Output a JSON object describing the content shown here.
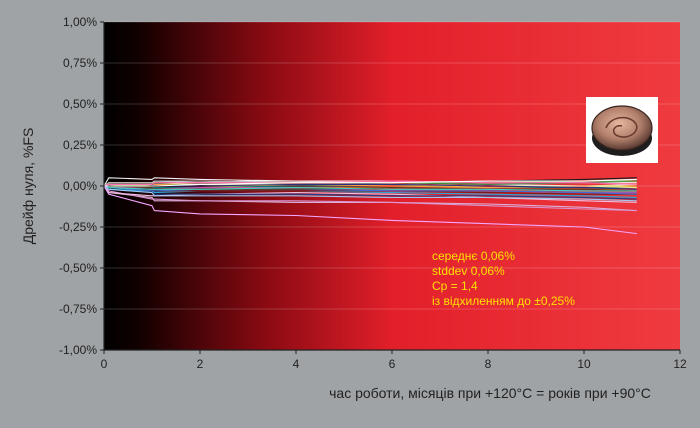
{
  "chart_data": {
    "type": "line",
    "ylabel": "Дрейф нуля, %FS",
    "xlabel": "час роботи, місяців при +120°C = років при +90°C",
    "xlim": [
      0,
      12
    ],
    "ylim": [
      -1.0,
      1.0
    ],
    "x_ticks": [
      {
        "value": 0,
        "label": "0"
      },
      {
        "value": 2,
        "label": "2"
      },
      {
        "value": 4,
        "label": "4"
      },
      {
        "value": 6,
        "label": "6"
      },
      {
        "value": 8,
        "label": "8"
      },
      {
        "value": 10,
        "label": "10"
      },
      {
        "value": 12,
        "label": "12"
      }
    ],
    "y_ticks": [
      {
        "value": 1.0,
        "label": "1,00%"
      },
      {
        "value": 0.75,
        "label": "0,75%"
      },
      {
        "value": 0.5,
        "label": "0,50%"
      },
      {
        "value": 0.25,
        "label": "0,25%"
      },
      {
        "value": 0.0,
        "label": "0,00%"
      },
      {
        "value": -0.25,
        "label": "-0,25%"
      },
      {
        "value": -0.5,
        "label": "-0,50%"
      },
      {
        "value": -0.75,
        "label": "-0,75%"
      },
      {
        "value": -1.0,
        "label": "-1,00%"
      }
    ],
    "grid": true,
    "annotations": [
      "середнє 0,06%",
      "stddev 0,06%",
      "Cp = 1,4",
      "із відхиленням до ±0,25%"
    ],
    "series": [
      {
        "color": "#e8eef2",
        "x": [
          0,
          0.1,
          1,
          1.05,
          2,
          3,
          4,
          6,
          8,
          10,
          11.1
        ],
        "y": [
          0.0,
          0.02,
          0.02,
          0.03,
          0.02,
          0.03,
          0.03,
          0.02,
          0.01,
          0.0,
          0.01
        ]
      },
      {
        "color": "#dcb0d8",
        "x": [
          0,
          0.1,
          1,
          1.05,
          2,
          4,
          6,
          8,
          10,
          11.1
        ],
        "y": [
          0.0,
          -0.04,
          -0.07,
          -0.09,
          -0.09,
          -0.1,
          -0.1,
          -0.11,
          -0.13,
          -0.15
        ]
      },
      {
        "color": "#d995cf",
        "x": [
          0,
          0.1,
          1,
          1.05,
          2,
          4,
          6,
          8,
          10,
          11.1
        ],
        "y": [
          0.0,
          -0.03,
          -0.08,
          -0.08,
          -0.09,
          -0.09,
          -0.1,
          -0.12,
          -0.14,
          -0.15
        ]
      },
      {
        "color": "#f2f2f2",
        "x": [
          0,
          0.1,
          1,
          1.05,
          2,
          4,
          6,
          8,
          10,
          11.1
        ],
        "y": [
          0.0,
          0.05,
          0.04,
          0.05,
          0.04,
          0.03,
          0.03,
          0.02,
          0.02,
          0.02
        ]
      },
      {
        "color": "#f0c0e0",
        "x": [
          0,
          0.1,
          1,
          1.05,
          2,
          4,
          6,
          8,
          10,
          11.1
        ],
        "y": [
          0.0,
          -0.04,
          -0.06,
          -0.06,
          -0.05,
          -0.04,
          -0.05,
          -0.07,
          -0.09,
          -0.1
        ]
      },
      {
        "color": "#1f3d8a",
        "x": [
          0,
          0.1,
          1,
          1.05,
          2,
          4,
          6,
          8,
          10,
          11.1
        ],
        "y": [
          0.0,
          -0.02,
          -0.04,
          -0.05,
          -0.05,
          -0.05,
          -0.06,
          -0.06,
          -0.07,
          -0.08
        ]
      },
      {
        "color": "#2aa6d6",
        "x": [
          0,
          0.1,
          1,
          1.05,
          2,
          4,
          6,
          8,
          10,
          11.1
        ],
        "y": [
          0.0,
          -0.02,
          -0.03,
          -0.04,
          -0.03,
          -0.03,
          -0.04,
          -0.05,
          -0.06,
          -0.07
        ]
      },
      {
        "color": "#3a7d3a",
        "x": [
          0,
          0.1,
          1,
          1.05,
          2,
          4,
          6,
          8,
          10,
          11.1
        ],
        "y": [
          0.0,
          0.01,
          0.0,
          0.01,
          0.01,
          0.02,
          0.02,
          0.01,
          0.02,
          0.03
        ]
      },
      {
        "color": "#1a1a1a",
        "x": [
          0,
          0.1,
          1,
          1.05,
          2,
          4,
          6,
          8,
          10,
          11.1
        ],
        "y": [
          0.0,
          0.01,
          0.0,
          0.01,
          0.01,
          0.0,
          0.02,
          0.03,
          0.04,
          0.05
        ]
      },
      {
        "color": "#e8d23a",
        "x": [
          0,
          0.1,
          1,
          1.05,
          2,
          4,
          6,
          8,
          10,
          11.1
        ],
        "y": [
          0.0,
          0.01,
          0.0,
          0.0,
          0.0,
          0.0,
          0.0,
          0.0,
          0.0,
          0.0
        ]
      },
      {
        "color": "#d57b2c",
        "x": [
          0,
          0.1,
          1,
          1.05,
          2,
          4,
          6,
          8,
          10,
          11.1
        ],
        "y": [
          0.0,
          0.0,
          -0.01,
          -0.01,
          -0.01,
          -0.01,
          -0.01,
          -0.02,
          -0.02,
          -0.02
        ]
      },
      {
        "color": "#9b59b6",
        "x": [
          0,
          0.1,
          1,
          1.05,
          2,
          4,
          6,
          8,
          10,
          11.1
        ],
        "y": [
          0.0,
          -0.01,
          -0.02,
          -0.02,
          -0.02,
          -0.02,
          -0.03,
          -0.03,
          -0.04,
          -0.04
        ]
      },
      {
        "color": "#0f6f6f",
        "x": [
          0,
          0.1,
          1,
          1.05,
          2,
          4,
          6,
          8,
          10,
          11.1
        ],
        "y": [
          0.0,
          0.0,
          -0.01,
          -0.01,
          -0.01,
          0.0,
          0.0,
          -0.01,
          -0.01,
          -0.01
        ]
      },
      {
        "color": "#7a1a1a",
        "x": [
          0,
          0.1,
          1,
          1.05,
          2,
          4,
          6,
          8,
          10,
          11.1
        ],
        "y": [
          0.0,
          -0.01,
          -0.02,
          -0.03,
          -0.03,
          -0.03,
          -0.03,
          -0.04,
          -0.05,
          -0.05
        ]
      },
      {
        "color": "#c84fa0",
        "x": [
          0,
          0.1,
          1,
          1.05,
          2,
          4,
          6,
          8,
          10,
          11.1
        ],
        "y": [
          0.0,
          -0.01,
          -0.01,
          -0.02,
          -0.01,
          -0.01,
          -0.02,
          -0.02,
          -0.03,
          -0.03
        ]
      },
      {
        "color": "#6ab04c",
        "x": [
          0,
          0.1,
          1,
          1.05,
          2,
          4,
          6,
          8,
          10,
          11.1
        ],
        "y": [
          0.0,
          0.0,
          0.01,
          0.01,
          0.01,
          0.02,
          0.02,
          0.02,
          0.03,
          0.03
        ]
      },
      {
        "color": "#3c6fd1",
        "x": [
          0,
          0.1,
          1,
          1.05,
          2,
          4,
          6,
          8,
          10,
          11.1
        ],
        "y": [
          0.0,
          -0.01,
          -0.03,
          -0.03,
          -0.02,
          -0.02,
          -0.03,
          -0.03,
          -0.04,
          -0.05
        ]
      },
      {
        "color": "#ff9a3c",
        "x": [
          0,
          0.1,
          1,
          1.05,
          2,
          4,
          6,
          8,
          10,
          11.1
        ],
        "y": [
          0.0,
          0.01,
          0.01,
          0.01,
          0.0,
          0.01,
          0.0,
          -0.01,
          0.0,
          -0.01
        ]
      },
      {
        "color": "#e6e6a0",
        "x": [
          0,
          0.1,
          1,
          1.05,
          2,
          4,
          6,
          8,
          10,
          11.1
        ],
        "y": [
          0.0,
          0.02,
          0.02,
          0.02,
          0.01,
          0.01,
          0.01,
          0.0,
          0.0,
          -0.01
        ]
      },
      {
        "color": "#5a3a1a",
        "x": [
          0,
          0.1,
          1,
          1.05,
          2,
          4,
          6,
          8,
          10,
          11.1
        ],
        "y": [
          0.0,
          0.0,
          -0.01,
          -0.02,
          -0.02,
          -0.02,
          -0.01,
          -0.02,
          -0.02,
          -0.03
        ]
      },
      {
        "color": "#2f2f7f",
        "x": [
          0,
          0.1,
          1,
          1.05,
          2,
          4,
          6,
          8,
          10,
          11.1
        ],
        "y": [
          0.0,
          0.01,
          0.01,
          0.0,
          0.0,
          0.01,
          0.01,
          0.0,
          -0.01,
          -0.02
        ]
      },
      {
        "color": "#b0b0b0",
        "x": [
          0,
          0.1,
          1,
          1.05,
          2,
          4,
          6,
          8,
          10,
          11.1
        ],
        "y": [
          0.0,
          0.02,
          0.02,
          0.03,
          0.03,
          0.02,
          0.02,
          0.03,
          0.03,
          0.04
        ]
      },
      {
        "color": "#ff6fb0",
        "x": [
          0,
          0.1,
          1,
          1.05,
          2,
          4,
          6,
          8,
          10,
          11.1
        ],
        "y": [
          0.0,
          0.01,
          0.01,
          0.02,
          0.02,
          0.02,
          0.03,
          0.02,
          0.02,
          0.01
        ]
      },
      {
        "color": "#3fd1c1",
        "x": [
          0,
          0.1,
          1,
          1.05,
          2,
          4,
          6,
          8,
          10,
          11.1
        ],
        "y": [
          0.0,
          -0.01,
          -0.02,
          -0.02,
          -0.02,
          -0.01,
          -0.02,
          -0.02,
          -0.03,
          -0.03
        ]
      },
      {
        "color": "#a3c8f0",
        "x": [
          0,
          0.1,
          1,
          1.05,
          2,
          4,
          6,
          8,
          10,
          11.1
        ],
        "y": [
          0.0,
          -0.02,
          -0.04,
          -0.06,
          -0.06,
          -0.06,
          -0.07,
          -0.07,
          -0.08,
          -0.09
        ]
      },
      {
        "color": "#ffffff",
        "x": [
          0,
          0.1,
          1,
          1.05,
          2,
          4,
          6,
          8,
          10,
          11.1
        ],
        "y": [
          0.0,
          0.0,
          0.0,
          0.0,
          0.01,
          0.02,
          0.02,
          0.03,
          0.03,
          0.04
        ]
      },
      {
        "color": "#f3a6ff",
        "x": [
          0,
          0.1,
          1,
          1.05,
          2,
          4,
          6,
          8,
          10,
          11.1
        ],
        "y": [
          0.0,
          -0.05,
          -0.12,
          -0.15,
          -0.17,
          -0.18,
          -0.21,
          -0.23,
          -0.25,
          -0.29
        ]
      }
    ]
  }
}
